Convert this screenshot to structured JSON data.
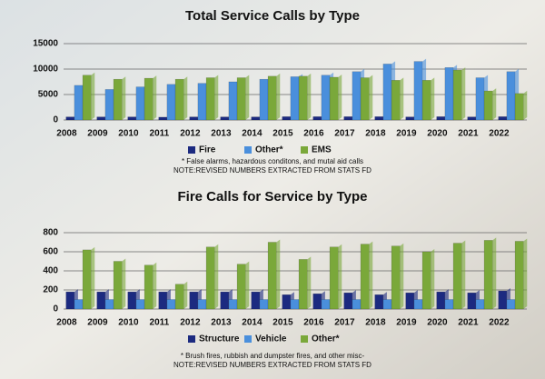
{
  "chart_data": [
    {
      "type": "bar",
      "title": "Total Service Calls by Type",
      "categories": [
        "2008",
        "2009",
        "2010",
        "2011",
        "2012",
        "2013",
        "2014",
        "2015",
        "2016",
        "2017",
        "2018",
        "2019",
        "2020",
        "2021",
        "2022"
      ],
      "series": [
        {
          "name": "Fire",
          "color": "#1c2a80",
          "values": [
            600,
            600,
            600,
            550,
            600,
            600,
            600,
            650,
            650,
            650,
            650,
            600,
            650,
            600,
            650
          ]
        },
        {
          "name": "Other*",
          "color": "#4a8fdc",
          "values": [
            6800,
            6000,
            6500,
            7000,
            7200,
            7500,
            8000,
            8500,
            8800,
            9500,
            11000,
            11500,
            10300,
            8300,
            9500
          ]
        },
        {
          "name": "EMS",
          "color": "#7aa83a",
          "values": [
            8800,
            8000,
            8200,
            8000,
            8300,
            8300,
            8600,
            8600,
            8400,
            8300,
            7800,
            7800,
            9800,
            5700,
            5200
          ]
        }
      ],
      "ylim": [
        0,
        15000
      ],
      "yticks": [
        0,
        5000,
        10000,
        15000
      ],
      "grid": true,
      "notes": [
        "* False alarms, hazardous conditons, and mutal aid calls",
        "NOTE:REVISED NUMBERS EXTRACTED FROM STATS FD"
      ]
    },
    {
      "type": "bar",
      "title": "Fire Calls for Service by Type",
      "categories": [
        "2008",
        "2009",
        "2010",
        "2011",
        "2012",
        "2013",
        "2014",
        "2015",
        "2016",
        "2017",
        "2018",
        "2019",
        "2020",
        "2021",
        "2022"
      ],
      "series": [
        {
          "name": "Structure",
          "color": "#1c2a80",
          "values": [
            180,
            180,
            180,
            180,
            180,
            180,
            180,
            150,
            160,
            170,
            150,
            170,
            180,
            170,
            190
          ]
        },
        {
          "name": "Vehicle",
          "color": "#4a8fdc",
          "values": [
            100,
            100,
            100,
            100,
            100,
            100,
            100,
            100,
            100,
            100,
            100,
            100,
            100,
            100,
            100
          ]
        },
        {
          "name": "Other*",
          "color": "#7aa83a",
          "values": [
            620,
            500,
            460,
            260,
            650,
            470,
            700,
            520,
            650,
            680,
            660,
            600,
            690,
            720,
            710
          ]
        }
      ],
      "ylim": [
        0,
        800
      ],
      "yticks": [
        0,
        200,
        400,
        600,
        800
      ],
      "grid": true,
      "notes": [
        "* Brush fires, rubbish and dumpster fires, and other misc-",
        "NOTE:REVISED NUMBERS EXTRACTED FROM STATS FD"
      ]
    }
  ]
}
